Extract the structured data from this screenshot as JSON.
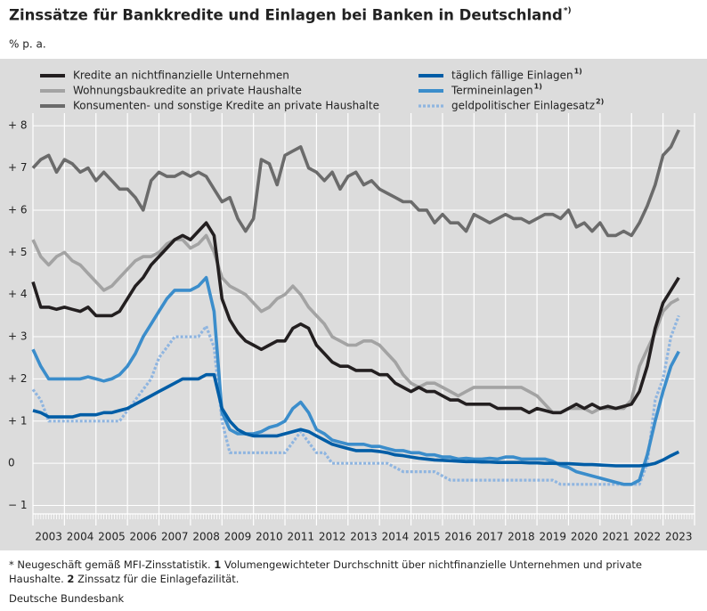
{
  "chart_data": {
    "type": "line",
    "title": "Zinssätze für Bankkredite und Einlagen bei Banken in Deutschland",
    "title_note": "*)",
    "y_unit": "% p. a.",
    "x": [
      2003,
      2003.25,
      2003.5,
      2003.75,
      2004,
      2004.25,
      2004.5,
      2004.75,
      2005,
      2005.25,
      2005.5,
      2005.75,
      2006,
      2006.25,
      2006.5,
      2006.75,
      2007,
      2007.25,
      2007.5,
      2007.75,
      2008,
      2008.25,
      2008.5,
      2008.75,
      2009,
      2009.25,
      2009.5,
      2009.75,
      2010,
      2010.25,
      2010.5,
      2010.75,
      2011,
      2011.25,
      2011.5,
      2011.75,
      2012,
      2012.25,
      2012.5,
      2012.75,
      2013,
      2013.25,
      2013.5,
      2013.75,
      2014,
      2014.25,
      2014.5,
      2014.75,
      2015,
      2015.25,
      2015.5,
      2015.75,
      2016,
      2016.25,
      2016.5,
      2016.75,
      2017,
      2017.25,
      2017.5,
      2017.75,
      2018,
      2018.25,
      2018.5,
      2018.75,
      2019,
      2019.25,
      2019.5,
      2019.75,
      2020,
      2020.25,
      2020.5,
      2020.75,
      2021,
      2021.25,
      2021.5,
      2021.75,
      2022,
      2022.25,
      2022.5,
      2022.75,
      2023,
      2023.25,
      2023.5
    ],
    "xlim": [
      2003,
      2024
    ],
    "xticks": [
      {
        "value": 2003.5,
        "label": "2003"
      },
      {
        "value": 2004.5,
        "label": "2004"
      },
      {
        "value": 2005.5,
        "label": "2005"
      },
      {
        "value": 2006.5,
        "label": "2006"
      },
      {
        "value": 2007.5,
        "label": "2007"
      },
      {
        "value": 2008.5,
        "label": "2008"
      },
      {
        "value": 2009.5,
        "label": "2009"
      },
      {
        "value": 2010.5,
        "label": "2010"
      },
      {
        "value": 2011.5,
        "label": "2011"
      },
      {
        "value": 2012.5,
        "label": "2012"
      },
      {
        "value": 2013.5,
        "label": "2013"
      },
      {
        "value": 2014.5,
        "label": "2014"
      },
      {
        "value": 2015.5,
        "label": "2015"
      },
      {
        "value": 2016.5,
        "label": "2016"
      },
      {
        "value": 2017.5,
        "label": "2017"
      },
      {
        "value": 2018.5,
        "label": "2018"
      },
      {
        "value": 2019.5,
        "label": "2019"
      },
      {
        "value": 2020.5,
        "label": "2020"
      },
      {
        "value": 2021.5,
        "label": "2021"
      },
      {
        "value": 2022.5,
        "label": "2022"
      },
      {
        "value": 2023.5,
        "label": "2023"
      }
    ],
    "ylim": [
      -1.2,
      8.3
    ],
    "yticks": [
      {
        "value": -1,
        "label": "− 1"
      },
      0,
      {
        "value": 1,
        "label": "+ 1"
      },
      {
        "value": 2,
        "label": "+ 2"
      },
      {
        "value": 3,
        "label": "+ 3"
      },
      {
        "value": 4,
        "label": "+ 4"
      },
      {
        "value": 5,
        "label": "+ 5"
      },
      {
        "value": 6,
        "label": "+ 6"
      },
      {
        "value": 7,
        "label": "+ 7"
      },
      {
        "value": 8,
        "label": "+ 8"
      }
    ],
    "grid": true,
    "series": [
      {
        "name": "Kredite an nichtfinanzielle Unternehmen",
        "color": "#231f20",
        "style": "solid",
        "values": [
          4.3,
          3.7,
          3.7,
          3.65,
          3.7,
          3.65,
          3.6,
          3.7,
          3.5,
          3.5,
          3.5,
          3.6,
          3.9,
          4.2,
          4.4,
          4.7,
          4.9,
          5.1,
          5.3,
          5.4,
          5.3,
          5.5,
          5.7,
          5.4,
          3.9,
          3.4,
          3.1,
          2.9,
          2.8,
          2.7,
          2.8,
          2.9,
          2.9,
          3.2,
          3.3,
          3.2,
          2.8,
          2.6,
          2.4,
          2.3,
          2.3,
          2.2,
          2.2,
          2.2,
          2.1,
          2.1,
          1.9,
          1.8,
          1.7,
          1.8,
          1.7,
          1.7,
          1.6,
          1.5,
          1.5,
          1.4,
          1.4,
          1.4,
          1.4,
          1.3,
          1.3,
          1.3,
          1.3,
          1.2,
          1.3,
          1.25,
          1.2,
          1.2,
          1.3,
          1.4,
          1.3,
          1.4,
          1.3,
          1.35,
          1.3,
          1.35,
          1.4,
          1.7,
          2.3,
          3.2,
          3.8,
          4.1,
          4.4
        ]
      },
      {
        "name": "Wohnungsbaukredite an private Haushalte",
        "color": "#a3a3a3",
        "style": "solid",
        "values": [
          5.3,
          4.9,
          4.7,
          4.9,
          5.0,
          4.8,
          4.7,
          4.5,
          4.3,
          4.1,
          4.2,
          4.4,
          4.6,
          4.8,
          4.9,
          4.9,
          5.0,
          5.2,
          5.3,
          5.3,
          5.1,
          5.2,
          5.4,
          5.0,
          4.4,
          4.2,
          4.1,
          4.0,
          3.8,
          3.6,
          3.7,
          3.9,
          4.0,
          4.2,
          4.0,
          3.7,
          3.5,
          3.3,
          3.0,
          2.9,
          2.8,
          2.8,
          2.9,
          2.9,
          2.8,
          2.6,
          2.4,
          2.1,
          1.9,
          1.8,
          1.9,
          1.9,
          1.8,
          1.7,
          1.6,
          1.7,
          1.8,
          1.8,
          1.8,
          1.8,
          1.8,
          1.8,
          1.8,
          1.7,
          1.6,
          1.4,
          1.2,
          1.2,
          1.3,
          1.3,
          1.3,
          1.2,
          1.3,
          1.3,
          1.3,
          1.3,
          1.5,
          2.3,
          2.7,
          3.1,
          3.6,
          3.8,
          3.9
        ]
      },
      {
        "name": "Konsumenten- und sonstige Kredite an private Haushalte",
        "color": "#6b6b6b",
        "style": "solid",
        "values": [
          7.0,
          7.2,
          7.3,
          6.9,
          7.2,
          7.1,
          6.9,
          7.0,
          6.7,
          6.9,
          6.7,
          6.5,
          6.5,
          6.3,
          6.0,
          6.7,
          6.9,
          6.8,
          6.8,
          6.9,
          6.8,
          6.9,
          6.8,
          6.5,
          6.2,
          6.3,
          5.8,
          5.5,
          5.8,
          7.2,
          7.1,
          6.6,
          7.3,
          7.4,
          7.5,
          7.0,
          6.9,
          6.7,
          6.9,
          6.5,
          6.8,
          6.9,
          6.6,
          6.7,
          6.5,
          6.4,
          6.3,
          6.2,
          6.2,
          6.0,
          6.0,
          5.7,
          5.9,
          5.7,
          5.7,
          5.5,
          5.9,
          5.8,
          5.7,
          5.8,
          5.9,
          5.8,
          5.8,
          5.7,
          5.8,
          5.9,
          5.9,
          5.8,
          6.0,
          5.6,
          5.7,
          5.5,
          5.7,
          5.4,
          5.4,
          5.5,
          5.4,
          5.7,
          6.1,
          6.6,
          7.3,
          7.5,
          7.9
        ]
      },
      {
        "name": "täglich fällige Einlagen",
        "note": "1)",
        "color": "#005da6",
        "style": "solid",
        "values": [
          1.25,
          1.2,
          1.1,
          1.1,
          1.1,
          1.1,
          1.15,
          1.15,
          1.15,
          1.2,
          1.2,
          1.25,
          1.3,
          1.4,
          1.5,
          1.6,
          1.7,
          1.8,
          1.9,
          2.0,
          2.0,
          2.0,
          2.1,
          2.1,
          1.3,
          1.0,
          0.8,
          0.7,
          0.65,
          0.65,
          0.65,
          0.65,
          0.7,
          0.75,
          0.8,
          0.75,
          0.65,
          0.55,
          0.45,
          0.4,
          0.35,
          0.3,
          0.3,
          0.3,
          0.28,
          0.25,
          0.2,
          0.18,
          0.15,
          0.12,
          0.1,
          0.08,
          0.07,
          0.06,
          0.05,
          0.04,
          0.04,
          0.03,
          0.03,
          0.02,
          0.02,
          0.02,
          0.02,
          0.01,
          0.01,
          0.0,
          0.0,
          -0.01,
          -0.01,
          -0.02,
          -0.03,
          -0.03,
          -0.04,
          -0.05,
          -0.06,
          -0.06,
          -0.06,
          -0.06,
          -0.04,
          0.0,
          0.08,
          0.18,
          0.27
        ]
      },
      {
        "name": "Termineinlagen",
        "note": "1)",
        "color": "#3b8dcb",
        "style": "solid",
        "values": [
          2.7,
          2.3,
          2.0,
          2.0,
          2.0,
          2.0,
          2.0,
          2.05,
          2.0,
          1.95,
          2.0,
          2.1,
          2.3,
          2.6,
          3.0,
          3.3,
          3.6,
          3.9,
          4.1,
          4.1,
          4.1,
          4.2,
          4.4,
          3.6,
          1.2,
          0.8,
          0.7,
          0.7,
          0.7,
          0.75,
          0.85,
          0.9,
          1.0,
          1.3,
          1.45,
          1.2,
          0.8,
          0.7,
          0.55,
          0.5,
          0.45,
          0.45,
          0.45,
          0.4,
          0.4,
          0.35,
          0.3,
          0.3,
          0.25,
          0.25,
          0.2,
          0.2,
          0.15,
          0.15,
          0.1,
          0.12,
          0.1,
          0.1,
          0.12,
          0.1,
          0.15,
          0.15,
          0.1,
          0.1,
          0.1,
          0.1,
          0.05,
          -0.05,
          -0.1,
          -0.2,
          -0.25,
          -0.3,
          -0.35,
          -0.4,
          -0.45,
          -0.5,
          -0.5,
          -0.4,
          0.2,
          1.0,
          1.7,
          2.3,
          2.65
        ]
      },
      {
        "name": "geldpolitischer Einlagesatz",
        "note": "2)",
        "color": "#8fb5e0",
        "style": "dotted",
        "values": [
          1.75,
          1.5,
          1.0,
          1.0,
          1.0,
          1.0,
          1.0,
          1.0,
          1.0,
          1.0,
          1.0,
          1.0,
          1.25,
          1.5,
          1.75,
          2.0,
          2.5,
          2.75,
          3.0,
          3.0,
          3.0,
          3.0,
          3.25,
          2.75,
          1.0,
          0.25,
          0.25,
          0.25,
          0.25,
          0.25,
          0.25,
          0.25,
          0.25,
          0.5,
          0.75,
          0.5,
          0.25,
          0.25,
          0,
          0,
          0,
          0,
          0,
          0,
          0,
          0,
          -0.1,
          -0.2,
          -0.2,
          -0.2,
          -0.2,
          -0.2,
          -0.3,
          -0.4,
          -0.4,
          -0.4,
          -0.4,
          -0.4,
          -0.4,
          -0.4,
          -0.4,
          -0.4,
          -0.4,
          -0.4,
          -0.4,
          -0.4,
          -0.4,
          -0.5,
          -0.5,
          -0.5,
          -0.5,
          -0.5,
          -0.5,
          -0.5,
          -0.5,
          -0.5,
          -0.5,
          -0.5,
          0,
          1.5,
          2.0,
          3.0,
          3.5
        ]
      }
    ]
  },
  "footnotes": [
    {
      "text": "* Neugeschäft gemäß MFI-Zinsstatistik."
    },
    {
      "marker": "1",
      "text": "Volumengewichteter Durchschnitt über nichtfinanzielle Unternehmen und private Haushalte."
    },
    {
      "marker": "2",
      "text": "Zinssatz für die Einlagefazilität."
    }
  ],
  "source": "Deutsche Bundesbank"
}
